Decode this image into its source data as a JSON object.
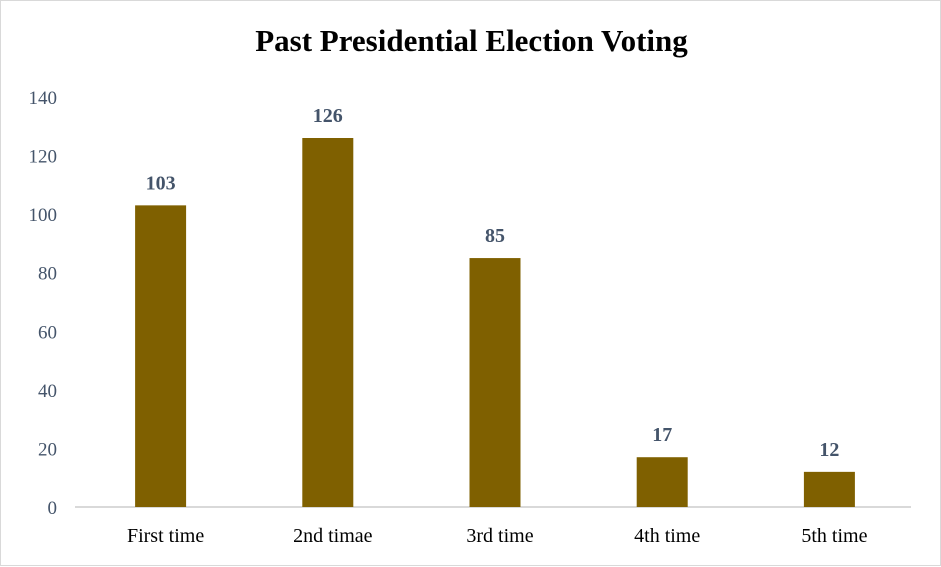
{
  "chart_data": {
    "type": "bar",
    "title": "Past Presidential Election Voting",
    "categories": [
      "First time",
      "2nd timae",
      "3rd time",
      "4th time",
      "5th time"
    ],
    "values": [
      103,
      126,
      85,
      17,
      12
    ],
    "data_labels": [
      "103",
      "126",
      "85",
      "17",
      "12"
    ],
    "xlabel": "",
    "ylabel": "",
    "ylim": [
      0,
      140
    ],
    "yticks": [
      "0",
      "20",
      "40",
      "60",
      "80",
      "100",
      "120",
      "140"
    ],
    "grid": false,
    "legend": "none",
    "colors": {
      "bar": "#7f6000",
      "labels": "#44546a",
      "axis": "#d9d9d9"
    }
  }
}
